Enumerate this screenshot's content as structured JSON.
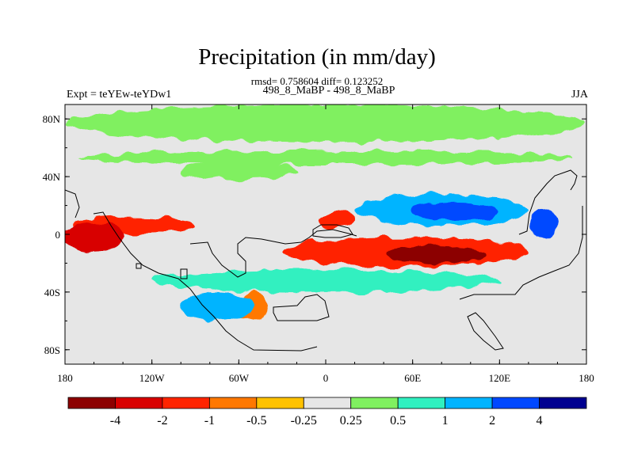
{
  "title": "Precipitation (in mm/day)",
  "stats": "rmsd= 0.758604 diff= 0.123252",
  "subtitle": "498_8_MaBP - 498_8_MaBP",
  "left_string": "Expt = teYEw-teYDw1",
  "right_string": "JJA",
  "chart_data": {
    "type": "heatmap",
    "title": "Precipitation (in mm/day)",
    "projection": "cylindrical equidistant",
    "x_range_deg": [
      -180,
      180
    ],
    "y_range_deg": [
      -90,
      90
    ],
    "x_ticks": [
      {
        "value": -180,
        "label": "180"
      },
      {
        "value": -120,
        "label": "120W"
      },
      {
        "value": -60,
        "label": "60W"
      },
      {
        "value": 0,
        "label": "0"
      },
      {
        "value": 60,
        "label": "60E"
      },
      {
        "value": 120,
        "label": "120E"
      },
      {
        "value": 180,
        "label": "180"
      }
    ],
    "y_ticks": [
      {
        "value": 80,
        "label": "80N"
      },
      {
        "value": 40,
        "label": "40N"
      },
      {
        "value": 0,
        "label": "0"
      },
      {
        "value": -40,
        "label": "40S"
      },
      {
        "value": -80,
        "label": "80S"
      }
    ],
    "colorbar": {
      "colors": [
        "#8c0000",
        "#d80000",
        "#ff2400",
        "#ff7800",
        "#ffc200",
        "#e6e6e6",
        "#80f060",
        "#30f0c0",
        "#00b4ff",
        "#0048ff",
        "#000090"
      ],
      "levels": [
        "-4",
        "-2",
        "-1",
        "-0.5",
        "-0.25",
        "0.25",
        "0.5",
        "1",
        "2",
        "4"
      ]
    },
    "regions": [
      {
        "name": "arctic-band",
        "lon": [
          -180,
          180
        ],
        "lat": [
          64,
          90
        ],
        "value": 0.3
      },
      {
        "name": "north-midlatitude-band",
        "lon": [
          -170,
          170
        ],
        "lat": [
          48,
          58
        ],
        "value": 0.3
      },
      {
        "name": "north-atlantic-band",
        "lon": [
          -100,
          -20
        ],
        "lat": [
          38,
          50
        ],
        "value": 0.3
      },
      {
        "name": "pacific-itcz-dry",
        "lon": [
          -175,
          -90
        ],
        "lat": [
          0,
          12
        ],
        "value": -1.5
      },
      {
        "name": "east-pacific-dry",
        "lon": [
          -180,
          -140
        ],
        "lat": [
          -12,
          8
        ],
        "value": -2.5
      },
      {
        "name": "african-dry",
        "lon": [
          -5,
          20
        ],
        "lat": [
          4,
          16
        ],
        "value": -2
      },
      {
        "name": "indian-ocean-dry",
        "lon": [
          -30,
          140
        ],
        "lat": [
          -22,
          -2
        ],
        "value": -2
      },
      {
        "name": "indian-ocean-core",
        "lon": [
          40,
          110
        ],
        "lat": [
          -20,
          -8
        ],
        "value": -4.5
      },
      {
        "name": "north-pacific-wet",
        "lon": [
          20,
          140
        ],
        "lat": [
          6,
          28
        ],
        "value": 1.5
      },
      {
        "name": "north-pacific-core",
        "lon": [
          60,
          120
        ],
        "lat": [
          10,
          22
        ],
        "value": 2.5
      },
      {
        "name": "west-pacific-core",
        "lon": [
          140,
          160
        ],
        "lat": [
          -2,
          18
        ],
        "value": 3
      },
      {
        "name": "southern-ocean-wet",
        "lon": [
          -120,
          120
        ],
        "lat": [
          -40,
          -24
        ],
        "value": 0.8
      },
      {
        "name": "south-atlantic-dry",
        "lon": [
          -60,
          -40
        ],
        "lat": [
          -60,
          -40
        ],
        "value": -0.6
      },
      {
        "name": "south-pacific-wet",
        "lon": [
          -100,
          -50
        ],
        "lat": [
          -60,
          -40
        ],
        "value": 1.2
      }
    ]
  }
}
